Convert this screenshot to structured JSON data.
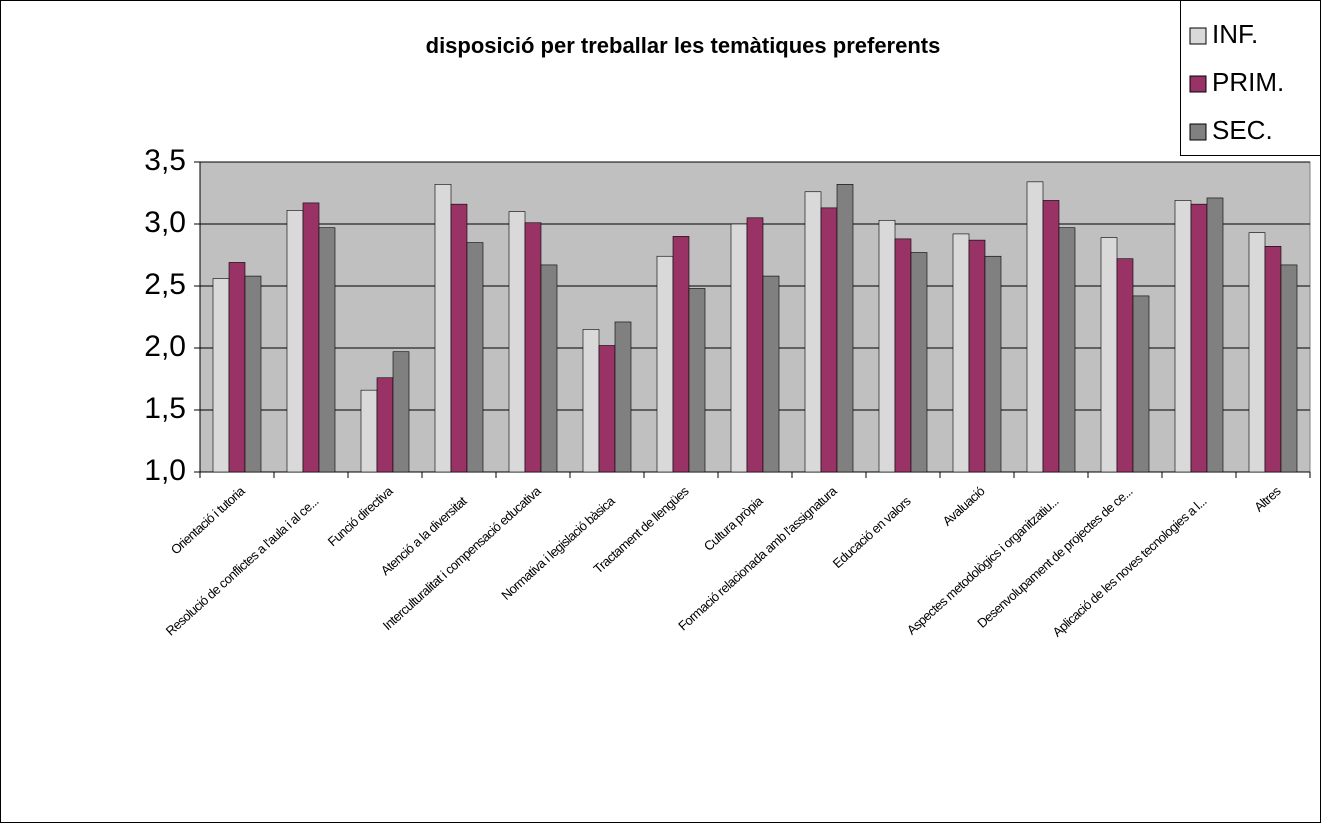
{
  "chart_data": {
    "type": "bar",
    "title": "disposició per treballar les temàtiques preferents",
    "categories": [
      "Orientació i tutoria",
      "Resolució de conflictes a l'aula i al ce...",
      "Funció directiva",
      "Atenció a la diversitat",
      "Interculturalitat i compensació educativa",
      "Normativa i legislació bàsica",
      "Tractament de llengües",
      "Cultura pròpia",
      "Formació relacionada amb l'assignatura",
      "Educació en valors",
      "Avaluació",
      "Aspectes metodològics i organitzatiu...",
      "Desenvolupament de projectes de ce...",
      "Aplicació de les noves tecnologies a l...",
      "Altres"
    ],
    "series": [
      {
        "name": "INF.",
        "color": "#d9d9d9",
        "values": [
          2.56,
          3.11,
          1.66,
          3.32,
          3.1,
          2.15,
          2.74,
          3.0,
          3.26,
          3.03,
          2.92,
          3.34,
          2.89,
          3.19,
          2.93
        ]
      },
      {
        "name": "PRIM.",
        "color": "#993366",
        "values": [
          2.69,
          3.17,
          1.76,
          3.16,
          3.01,
          2.02,
          2.9,
          3.05,
          3.13,
          2.88,
          2.87,
          3.19,
          2.72,
          3.16,
          2.82
        ]
      },
      {
        "name": "SEC.",
        "color": "#808080",
        "values": [
          2.58,
          2.97,
          1.97,
          2.85,
          2.67,
          2.21,
          2.48,
          2.58,
          3.32,
          2.77,
          2.74,
          2.97,
          2.42,
          3.21,
          2.67
        ]
      }
    ],
    "ylim": [
      1.0,
      3.5
    ],
    "yticks": [
      {
        "value": 1.0,
        "label": "1,0"
      },
      {
        "value": 1.5,
        "label": "1,5"
      },
      {
        "value": 2.0,
        "label": "2,0"
      },
      {
        "value": 2.5,
        "label": "2,5"
      },
      {
        "value": 3.0,
        "label": "3,0"
      },
      {
        "value": 3.5,
        "label": "3,5"
      }
    ],
    "grid": true,
    "legend": "top-right"
  }
}
